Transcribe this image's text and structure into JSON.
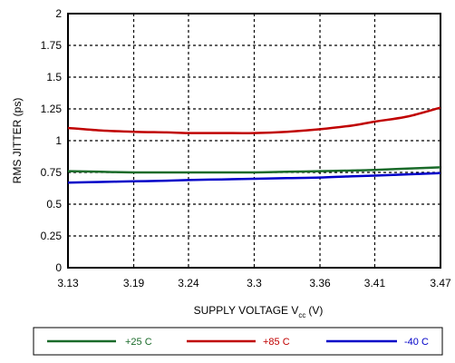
{
  "chart_data": {
    "type": "line",
    "title": "",
    "xlabel": "SUPPLY VOLTAGE V",
    "xlabel_subscript": "cc",
    "xlabel_unit": "(V)",
    "ylabel": "RMS JITTER (ps)",
    "xlim": [
      3.13,
      3.47
    ],
    "ylim": [
      0,
      2
    ],
    "x_ticks": [
      3.13,
      3.19,
      3.24,
      3.3,
      3.36,
      3.41,
      3.47
    ],
    "y_ticks": [
      0,
      0.25,
      0.5,
      0.75,
      1,
      1.25,
      1.5,
      1.75,
      2
    ],
    "x_tick_labels": [
      "3.13",
      "3.19",
      "3.24",
      "3.3",
      "3.36",
      "3.41",
      "3.47"
    ],
    "y_tick_labels": [
      "0",
      "0.25",
      "0.5",
      "0.75",
      "1",
      "1.25",
      "1.5",
      "1.75",
      "2"
    ],
    "grid": "dotted",
    "legend_position": "bottom",
    "series": [
      {
        "name": "+25 C",
        "color": "#1a6b2a",
        "x": [
          3.13,
          3.16,
          3.19,
          3.22,
          3.24,
          3.27,
          3.3,
          3.33,
          3.36,
          3.39,
          3.41,
          3.44,
          3.47
        ],
        "y": [
          0.76,
          0.755,
          0.75,
          0.75,
          0.75,
          0.75,
          0.75,
          0.755,
          0.76,
          0.765,
          0.77,
          0.78,
          0.79
        ]
      },
      {
        "name": "+85 C",
        "color": "#c00000",
        "x": [
          3.13,
          3.16,
          3.19,
          3.22,
          3.24,
          3.27,
          3.3,
          3.33,
          3.36,
          3.39,
          3.41,
          3.44,
          3.47
        ],
        "y": [
          1.1,
          1.08,
          1.07,
          1.065,
          1.06,
          1.06,
          1.06,
          1.07,
          1.09,
          1.12,
          1.15,
          1.19,
          1.26
        ]
      },
      {
        "name": "-40 C",
        "color": "#0000c8",
        "x": [
          3.13,
          3.16,
          3.19,
          3.22,
          3.24,
          3.27,
          3.3,
          3.33,
          3.36,
          3.39,
          3.41,
          3.44,
          3.47
        ],
        "y": [
          0.67,
          0.675,
          0.68,
          0.685,
          0.69,
          0.695,
          0.7,
          0.705,
          0.71,
          0.72,
          0.725,
          0.735,
          0.745
        ]
      }
    ]
  }
}
